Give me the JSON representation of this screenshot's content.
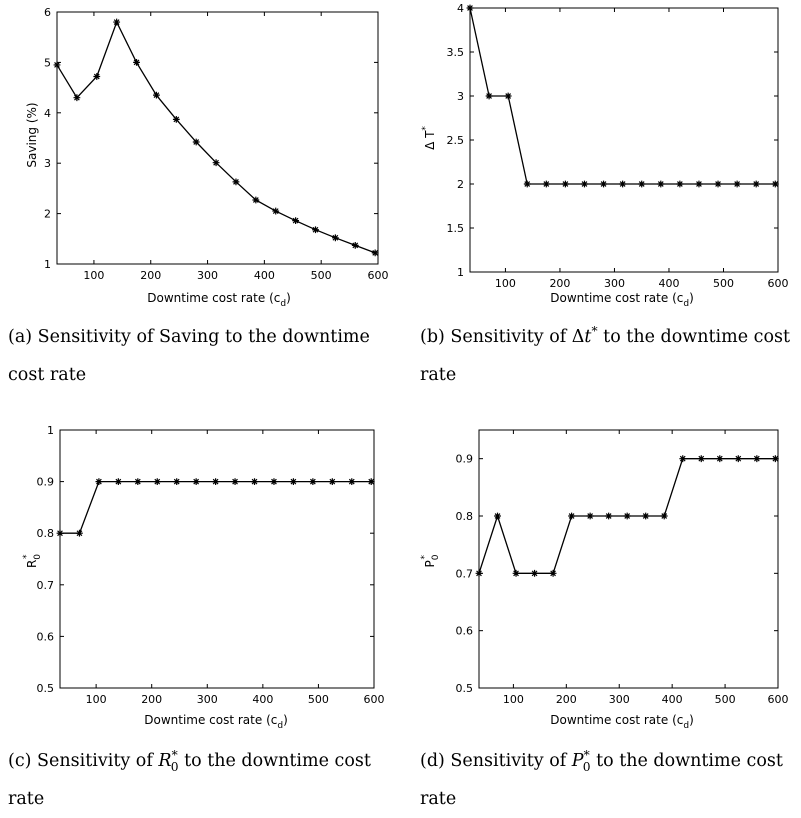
{
  "chart_data": [
    {
      "type": "line",
      "marker": "asterisk",
      "caption": "(a) Sensitivity of Saving to the downtime cost rate",
      "xlabel": "Downtime cost rate (c_d)",
      "ylabel": "Saving (%)",
      "xlim": [
        35,
        600
      ],
      "ylim": [
        1,
        6
      ],
      "xticks": [
        100,
        200,
        300,
        400,
        500,
        600
      ],
      "yticks": [
        1,
        2,
        3,
        4,
        5,
        6
      ],
      "grid": false,
      "x": [
        35,
        70,
        105,
        140,
        175,
        210,
        245,
        280,
        315,
        350,
        385,
        420,
        455,
        490,
        525,
        560,
        595
      ],
      "y": [
        4.95,
        4.3,
        4.72,
        5.8,
        5.0,
        4.35,
        3.87,
        3.42,
        3.01,
        2.63,
        2.27,
        2.05,
        1.86,
        1.68,
        1.52,
        1.37,
        1.22
      ]
    },
    {
      "type": "line",
      "marker": "asterisk",
      "caption": "(b) Sensitivity of Δt* to the downtime cost rate",
      "xlabel": "Downtime cost rate (c_d)",
      "ylabel": "Δ T*",
      "xlim": [
        35,
        600
      ],
      "ylim": [
        1,
        4
      ],
      "xticks": [
        100,
        200,
        300,
        400,
        500,
        600
      ],
      "yticks": [
        1,
        1.5,
        2,
        2.5,
        3,
        3.5,
        4
      ],
      "grid": false,
      "x": [
        35,
        70,
        105,
        140,
        175,
        210,
        245,
        280,
        315,
        350,
        385,
        420,
        455,
        490,
        525,
        560,
        595
      ],
      "y": [
        4,
        3,
        3,
        2,
        2,
        2,
        2,
        2,
        2,
        2,
        2,
        2,
        2,
        2,
        2,
        2,
        2
      ]
    },
    {
      "type": "line",
      "marker": "asterisk",
      "caption": "(c) Sensitivity of R0* to the downtime cost rate",
      "xlabel": "Downtime cost rate (c_d)",
      "ylabel": "R0*",
      "xlim": [
        35,
        600
      ],
      "ylim": [
        0.5,
        1
      ],
      "xticks": [
        100,
        200,
        300,
        400,
        500,
        600
      ],
      "yticks": [
        0.5,
        0.6,
        0.7,
        0.8,
        0.9,
        1
      ],
      "grid": false,
      "x": [
        35,
        70,
        105,
        140,
        175,
        210,
        245,
        280,
        315,
        350,
        385,
        420,
        455,
        490,
        525,
        560,
        595
      ],
      "y": [
        0.8,
        0.8,
        0.9,
        0.9,
        0.9,
        0.9,
        0.9,
        0.9,
        0.9,
        0.9,
        0.9,
        0.9,
        0.9,
        0.9,
        0.9,
        0.9,
        0.9
      ]
    },
    {
      "type": "line",
      "marker": "asterisk",
      "caption": "(d) Sensitivity of P0* to the downtime cost rate",
      "xlabel": "Downtime cost rate (c_d)",
      "ylabel": "P0*",
      "xlim": [
        35,
        600
      ],
      "ylim": [
        0.5,
        0.95
      ],
      "xticks": [
        100,
        200,
        300,
        400,
        500,
        600
      ],
      "yticks": [
        0.5,
        0.6,
        0.7,
        0.8,
        0.9
      ],
      "grid": false,
      "x": [
        35,
        70,
        105,
        140,
        175,
        210,
        245,
        280,
        315,
        350,
        385,
        420,
        455,
        490,
        525,
        560,
        595
      ],
      "y": [
        0.7,
        0.8,
        0.7,
        0.7,
        0.7,
        0.8,
        0.8,
        0.8,
        0.8,
        0.8,
        0.8,
        0.9,
        0.9,
        0.9,
        0.9,
        0.9,
        0.9
      ]
    }
  ],
  "labels": {
    "xlabel_main": "Downtime cost rate (c",
    "xlabel_sub": "d",
    "xlabel_close": ")",
    "saving_ylabel": "Saving (%)",
    "dt_ylabel_main": "Δ T",
    "dt_ylabel_sup": "*",
    "r_ylabel_main": "R",
    "r_ylabel_sub": "0",
    "r_ylabel_sup": "*",
    "p_ylabel_main": "P",
    "p_ylabel_sub": "0",
    "p_ylabel_sup": "*",
    "cap_a": "(a) Sensitivity of Saving to the downtime cost rate",
    "cap_b_pre": "(b) Sensitivity of Δ",
    "cap_b_var": "t",
    "cap_b_sup": "*",
    "cap_b_post": " to the downtime cost rate",
    "cap_c_pre": "(c) Sensitivity of ",
    "cap_c_var": "R",
    "cap_c_sup": "*",
    "cap_c_sub": "0",
    "cap_c_post": " to the downtime cost rate",
    "cap_d_pre": "(d) Sensitivity of ",
    "cap_d_var": "P",
    "cap_d_sup": "*",
    "cap_d_sub": "0",
    "cap_d_post": " to the downtime cost rate"
  }
}
